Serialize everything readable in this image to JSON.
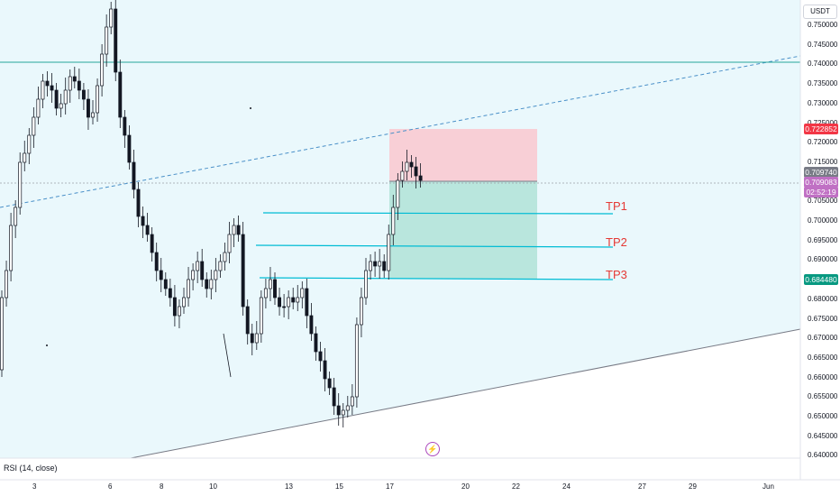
{
  "header": {
    "currency": "USDT"
  },
  "indicator": {
    "label": "RSI (14, close)"
  },
  "y_axis_ticks": [
    "0.750000",
    "0.745000",
    "0.740000",
    "0.735000",
    "0.730000",
    "0.725000",
    "0.720000",
    "0.715000",
    "0.710000",
    "0.705000",
    "0.700000",
    "0.695000",
    "0.690000",
    "0.685000",
    "0.680000",
    "0.675000",
    "0.670000",
    "0.665000",
    "0.660000",
    "0.655000",
    "0.650000",
    "0.645000",
    "0.640000"
  ],
  "x_axis_ticks": [
    "3",
    "6",
    "8",
    "10",
    "13",
    "15",
    "17",
    "20",
    "22",
    "24",
    "27",
    "29",
    "Jun"
  ],
  "price_labels": {
    "stop": "0.722852",
    "last": "0.709740",
    "current": "0.709083",
    "countdown": "02:52:19",
    "target": "0.684480"
  },
  "take_profits": [
    "TP1",
    "TP2",
    "TP3"
  ],
  "colors": {
    "bull": "#26a69a",
    "bear": "#ef5350",
    "candle": "#131722",
    "stop_zone": "#f8cfd6",
    "target_zone": "#b9e6dd",
    "channel": "#eaf8fc",
    "stop_label": "#f23645",
    "target_label": "#089981",
    "last_label": "#787b86",
    "current_label": "#c070c4",
    "tp_line": "#00bcd4"
  },
  "chart_data": {
    "type": "candlestick",
    "y_range": [
      0.64,
      0.75
    ],
    "entry": 0.709083,
    "stop_loss": 0.722852,
    "take_profit_levels": [
      0.701,
      0.693,
      0.685
    ],
    "target": 0.68448,
    "horizontal_level": 0.74
  }
}
